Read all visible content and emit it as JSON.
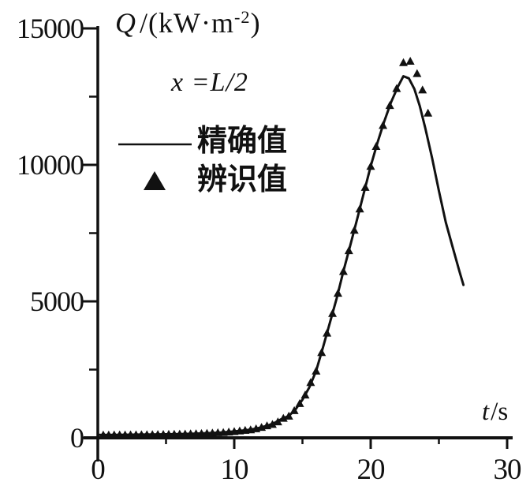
{
  "figure": {
    "y_axis_title": {
      "q": "Q",
      "mid": "/(kW·m",
      "sup": "-2",
      "end": ")"
    },
    "x_axis_title": {
      "t": "t",
      "rest": "/s"
    },
    "annotation": "x =L/2",
    "legend": {
      "items": [
        {
          "marker": "line",
          "label": "精确值"
        },
        {
          "marker": "triangle",
          "label": "辨识值"
        }
      ]
    },
    "ink_color": "#111111",
    "background_color": "#ffffff"
  },
  "chart_data": {
    "type": "line",
    "title": "Q/(kW·m⁻²)",
    "xlabel": "t/s",
    "ylabel": "Q/(kW·m⁻²)",
    "annotation": "x =L/2",
    "xlim": [
      0,
      30
    ],
    "ylim": [
      0,
      15000
    ],
    "grid": false,
    "legend_position": "upper-left",
    "x_ticks_major": [
      {
        "value": 0,
        "label": "0"
      },
      {
        "value": 10,
        "label": "10"
      },
      {
        "value": 20,
        "label": "20"
      },
      {
        "value": 30,
        "label": "30"
      }
    ],
    "x_ticks_minor": [
      5,
      15,
      25
    ],
    "y_ticks_major": [
      {
        "value": 0,
        "label": "0"
      },
      {
        "value": 5000,
        "label": "5000"
      },
      {
        "value": 10000,
        "label": "10000"
      },
      {
        "value": 15000,
        "label": "15000"
      }
    ],
    "y_ticks_minor": [
      2500,
      7500,
      12500
    ],
    "series": [
      {
        "name": "精确值",
        "type": "line",
        "points": [
          [
            0,
            108
          ],
          [
            1,
            110
          ],
          [
            2,
            113
          ],
          [
            3,
            118
          ],
          [
            4,
            124
          ],
          [
            5,
            131
          ],
          [
            6,
            140
          ],
          [
            7,
            152
          ],
          [
            8,
            170
          ],
          [
            9,
            195
          ],
          [
            10,
            235
          ],
          [
            10.5,
            260
          ],
          [
            11,
            290
          ],
          [
            11.5,
            330
          ],
          [
            12,
            385
          ],
          [
            12.5,
            460
          ],
          [
            13,
            560
          ],
          [
            13.5,
            700
          ],
          [
            14,
            800
          ],
          [
            14.5,
            1050
          ],
          [
            15,
            1400
          ],
          [
            15.5,
            1850
          ],
          [
            16,
            2450
          ],
          [
            16.5,
            3300
          ],
          [
            17,
            4200
          ],
          [
            17.5,
            5100
          ],
          [
            18,
            6100
          ],
          [
            18.5,
            7050
          ],
          [
            19,
            8000
          ],
          [
            19.5,
            8980
          ],
          [
            20,
            9950
          ],
          [
            20.5,
            10820
          ],
          [
            21,
            11600
          ],
          [
            21.5,
            12300
          ],
          [
            22,
            12870
          ],
          [
            22.4,
            13250
          ],
          [
            22.8,
            13170
          ],
          [
            23.2,
            12780
          ],
          [
            23.6,
            12150
          ],
          [
            24,
            11350
          ],
          [
            24.5,
            10250
          ],
          [
            25,
            9050
          ],
          [
            25.5,
            7900
          ],
          [
            26,
            7000
          ],
          [
            26.5,
            6100
          ],
          [
            26.8,
            5600
          ]
        ]
      },
      {
        "name": "辨识值",
        "type": "scatter",
        "marker": "triangle",
        "points": [
          [
            0.4,
            109
          ],
          [
            0.8,
            110
          ],
          [
            1.2,
            111
          ],
          [
            1.6,
            112
          ],
          [
            2.0,
            113
          ],
          [
            2.4,
            114
          ],
          [
            2.8,
            116
          ],
          [
            3.2,
            118
          ],
          [
            3.6,
            121
          ],
          [
            4.0,
            124
          ],
          [
            4.4,
            127
          ],
          [
            4.8,
            130
          ],
          [
            5.2,
            132
          ],
          [
            5.6,
            136
          ],
          [
            6.0,
            140
          ],
          [
            6.4,
            145
          ],
          [
            6.8,
            150
          ],
          [
            7.2,
            154
          ],
          [
            7.6,
            161
          ],
          [
            8.0,
            170
          ],
          [
            8.4,
            180
          ],
          [
            8.8,
            190
          ],
          [
            9.2,
            200
          ],
          [
            9.6,
            215
          ],
          [
            10.0,
            235
          ],
          [
            10.4,
            255
          ],
          [
            10.8,
            278
          ],
          [
            11.2,
            298
          ],
          [
            11.6,
            336
          ],
          [
            12.0,
            385
          ],
          [
            12.4,
            445
          ],
          [
            12.8,
            495
          ],
          [
            13.2,
            590
          ],
          [
            13.6,
            720
          ],
          [
            14.0,
            800
          ],
          [
            14.4,
            1000
          ],
          [
            14.8,
            1260
          ],
          [
            15.2,
            1570
          ],
          [
            15.6,
            2030
          ],
          [
            16.0,
            2450
          ],
          [
            16.4,
            3130
          ],
          [
            16.8,
            3840
          ],
          [
            17.2,
            4560
          ],
          [
            17.6,
            5300
          ],
          [
            18.0,
            6100
          ],
          [
            18.4,
            6860
          ],
          [
            18.8,
            7610
          ],
          [
            19.2,
            8390
          ],
          [
            19.6,
            9180
          ],
          [
            20.0,
            9950
          ],
          [
            20.4,
            10680
          ],
          [
            20.9,
            11450
          ],
          [
            21.4,
            12180
          ],
          [
            21.9,
            12800
          ],
          [
            22.4,
            13750
          ],
          [
            22.9,
            13800
          ],
          [
            23.4,
            13350
          ],
          [
            23.8,
            12750
          ],
          [
            24.2,
            11900
          ]
        ]
      }
    ]
  }
}
